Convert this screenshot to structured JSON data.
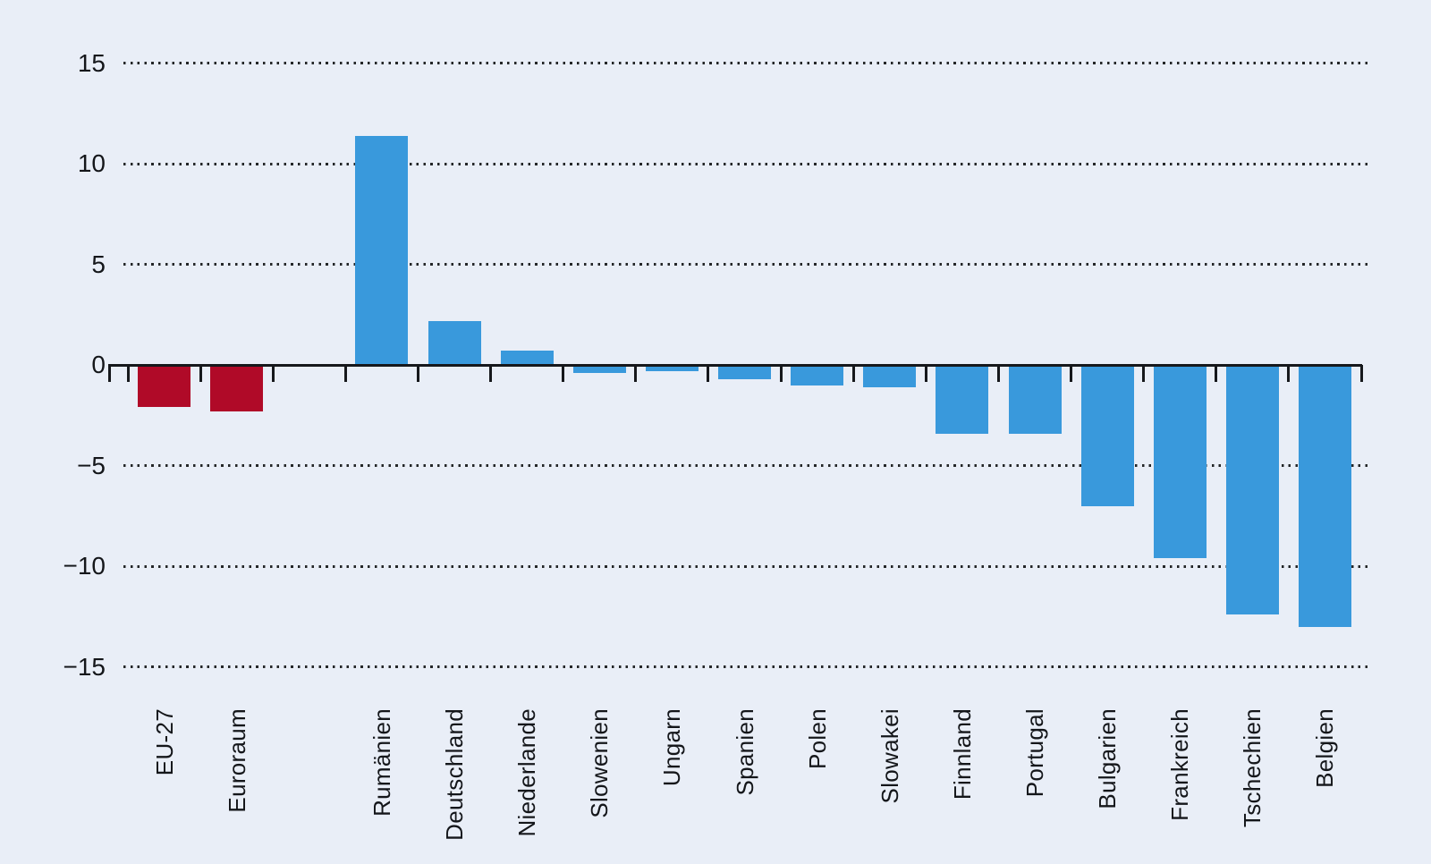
{
  "chart_data": {
    "type": "bar",
    "categories": [
      "EU-27",
      "Euroraum",
      "Rumänien",
      "Deutschland",
      "Niederlande",
      "Slowenien",
      "Ungarn",
      "Spanien",
      "Polen",
      "Slowakei",
      "Finnland",
      "Portugal",
      "Bulgarien",
      "Frankreich",
      "Tschechien",
      "Belgien"
    ],
    "values": [
      -2.1,
      -2.3,
      11.4,
      2.2,
      0.7,
      -0.4,
      -0.3,
      -0.7,
      -1.0,
      -1.1,
      -3.4,
      -3.4,
      -7.0,
      -9.6,
      -12.4,
      -13.0
    ],
    "groups": [
      "aggregate",
      "aggregate",
      "country",
      "country",
      "country",
      "country",
      "country",
      "country",
      "country",
      "country",
      "country",
      "country",
      "country",
      "country",
      "country",
      "country"
    ],
    "gap_after_index": 1,
    "y_axis": {
      "ticks": [
        {
          "label": "15",
          "value": 15
        },
        {
          "label": "10",
          "value": 10
        },
        {
          "label": "5",
          "value": 5
        },
        {
          "label": "0",
          "value": 0
        },
        {
          "label": "−5",
          "value": -5
        },
        {
          "label": "−10",
          "value": -10
        },
        {
          "label": "−15",
          "value": -15
        }
      ],
      "range": [
        -15,
        15
      ]
    },
    "xlabel": "",
    "ylabel": "",
    "grid": "dotted-horizontal",
    "legend_position": "none",
    "colors": {
      "aggregate_bar": "#b00a28",
      "country_bar": "#3999dc",
      "background": "#e9eef7",
      "axis": "#16181c",
      "grid_dots": "#242628",
      "text": "#14161a"
    }
  }
}
